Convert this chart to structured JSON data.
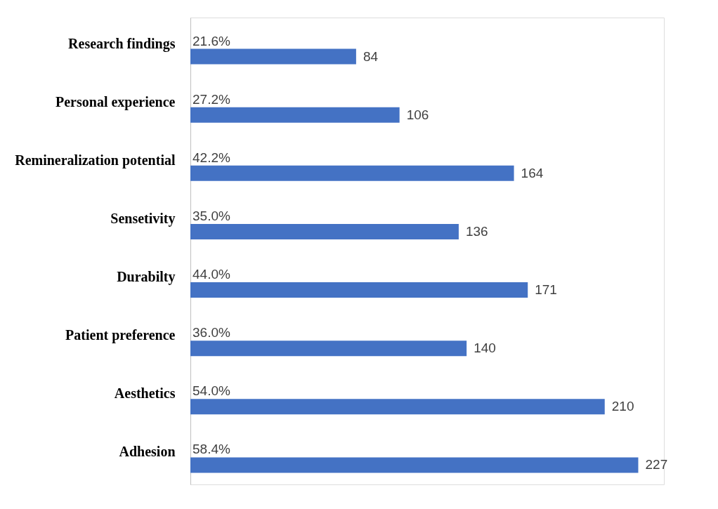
{
  "chart_data": {
    "type": "bar",
    "orientation": "horizontal",
    "categories": [
      "Research findings",
      "Personal experience",
      "Remineralization potential",
      "Sensetivity",
      "Durabilty",
      "Patient preference",
      "Aesthetics",
      "Adhesion"
    ],
    "values": [
      84,
      106,
      164,
      136,
      171,
      140,
      210,
      227
    ],
    "color": "#4472c4",
    "data_labels": true,
    "tick_labels": "y",
    "annotations": [
      "21.6%",
      "27.2%",
      "42.2%",
      "35.0%",
      "44.0%",
      "36.0%",
      "54.0%",
      "58.4%"
    ]
  }
}
